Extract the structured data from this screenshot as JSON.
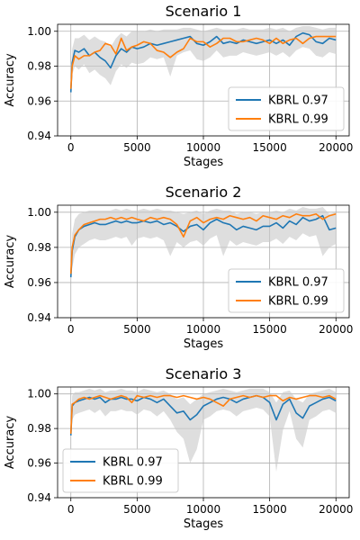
{
  "chart_data": [
    {
      "type": "line",
      "title": "Scenario 1",
      "xlabel": "Stages",
      "ylabel": "Accuracy",
      "xlim": [
        -1000,
        21000
      ],
      "ylim": [
        0.94,
        1.004
      ],
      "xticks": [
        0,
        5000,
        10000,
        15000,
        20000
      ],
      "yticks": [
        0.94,
        0.96,
        0.98,
        1.0
      ],
      "xtick_labels": [
        "0",
        "5000",
        "10000",
        "15000",
        "20000"
      ],
      "ytick_labels": [
        "0.94",
        "0.96",
        "0.98",
        "1.00"
      ],
      "grid": true,
      "legend_position": "lower-right",
      "series": [
        {
          "name": "KBRL 0.97",
          "color": "#1f77b4",
          "x": [
            0,
            100,
            300,
            600,
            1000,
            1400,
            1800,
            2200,
            2600,
            3000,
            3400,
            3800,
            4200,
            4600,
            5000,
            5500,
            6000,
            6500,
            7000,
            7500,
            8000,
            8500,
            9000,
            9500,
            10000,
            10500,
            11000,
            11500,
            12000,
            12500,
            13000,
            13500,
            14000,
            14500,
            15000,
            15500,
            16000,
            16500,
            17000,
            17500,
            18000,
            18500,
            19000,
            19500,
            20000
          ],
          "y": [
            0.965,
            0.982,
            0.989,
            0.988,
            0.99,
            0.986,
            0.988,
            0.985,
            0.983,
            0.979,
            0.986,
            0.99,
            0.988,
            0.991,
            0.99,
            0.991,
            0.993,
            0.992,
            0.993,
            0.994,
            0.995,
            0.996,
            0.997,
            0.993,
            0.992,
            0.994,
            0.997,
            0.993,
            0.994,
            0.993,
            0.995,
            0.994,
            0.993,
            0.994,
            0.995,
            0.993,
            0.995,
            0.992,
            0.997,
            0.999,
            0.998,
            0.994,
            0.993,
            0.996,
            0.995
          ],
          "band_lower": [
            0.963,
            0.975,
            0.98,
            0.978,
            0.981,
            0.976,
            0.978,
            0.975,
            0.973,
            0.969,
            0.977,
            0.981,
            0.979,
            0.982,
            0.981,
            0.982,
            0.985,
            0.984,
            0.985,
            0.974,
            0.986,
            0.988,
            0.989,
            0.984,
            0.983,
            0.985,
            0.989,
            0.985,
            0.986,
            0.986,
            0.988,
            0.987,
            0.986,
            0.987,
            0.988,
            0.986,
            0.988,
            0.985,
            0.989,
            0.991,
            0.99,
            0.986,
            0.985,
            0.988,
            0.987
          ],
          "band_upper": [
            0.968,
            0.99,
            0.996,
            0.996,
            0.998,
            0.995,
            0.997,
            0.995,
            0.994,
            0.991,
            0.996,
            0.999,
            0.997,
            1.0,
            1.0,
            1.0,
            1.001,
            1.0,
            1.001,
            1.001,
            1.001,
            1.002,
            1.002,
            1.001,
            1.0,
            1.001,
            1.002,
            1.001,
            1.001,
            1.001,
            1.002,
            1.001,
            1.001,
            1.001,
            1.002,
            1.001,
            1.002,
            1.0,
            1.002,
            1.003,
            1.003,
            1.002,
            1.001,
            1.002,
            1.002
          ]
        },
        {
          "name": "KBRL 0.99",
          "color": "#ff7f0e",
          "x": [
            0,
            100,
            300,
            600,
            1000,
            1400,
            1800,
            2200,
            2600,
            3000,
            3400,
            3800,
            4200,
            4600,
            5000,
            5500,
            6000,
            6500,
            7000,
            7500,
            8000,
            8500,
            9000,
            9500,
            10000,
            10500,
            11000,
            11500,
            12000,
            12500,
            13000,
            13500,
            14000,
            14500,
            15000,
            15500,
            16000,
            16500,
            17000,
            17500,
            18000,
            18500,
            19000,
            19500,
            20000
          ],
          "y": [
            0.967,
            0.98,
            0.986,
            0.984,
            0.986,
            0.986,
            0.988,
            0.989,
            0.993,
            0.992,
            0.987,
            0.996,
            0.989,
            0.991,
            0.992,
            0.994,
            0.993,
            0.989,
            0.988,
            0.985,
            0.988,
            0.99,
            0.996,
            0.994,
            0.994,
            0.991,
            0.993,
            0.996,
            0.996,
            0.994,
            0.994,
            0.995,
            0.996,
            0.995,
            0.993,
            0.996,
            0.993,
            0.995,
            0.996,
            0.993,
            0.996,
            0.997,
            0.997,
            0.997,
            0.997
          ]
        }
      ]
    },
    {
      "type": "line",
      "title": "Scenario 2",
      "xlabel": "Stages",
      "ylabel": "Accuracy",
      "xlim": [
        -1000,
        21000
      ],
      "ylim": [
        0.94,
        1.004
      ],
      "xticks": [
        0,
        5000,
        10000,
        15000,
        20000
      ],
      "yticks": [
        0.94,
        0.96,
        0.98,
        1.0
      ],
      "xtick_labels": [
        "0",
        "5000",
        "10000",
        "15000",
        "20000"
      ],
      "ytick_labels": [
        "0.94",
        "0.96",
        "0.98",
        "1.00"
      ],
      "grid": true,
      "legend_position": "lower-right",
      "series": [
        {
          "name": "KBRL 0.97",
          "color": "#1f77b4",
          "x": [
            0,
            100,
            300,
            600,
            1000,
            1400,
            1800,
            2200,
            2600,
            3000,
            3400,
            3800,
            4200,
            4600,
            5000,
            5500,
            6000,
            6500,
            7000,
            7500,
            8000,
            8500,
            9000,
            9500,
            10000,
            10500,
            11000,
            11500,
            12000,
            12500,
            13000,
            13500,
            14000,
            14500,
            15000,
            15500,
            16000,
            16500,
            17000,
            17500,
            18000,
            18500,
            19000,
            19500,
            20000
          ],
          "y": [
            0.963,
            0.978,
            0.986,
            0.99,
            0.992,
            0.993,
            0.994,
            0.993,
            0.993,
            0.994,
            0.995,
            0.994,
            0.995,
            0.994,
            0.994,
            0.995,
            0.994,
            0.995,
            0.993,
            0.994,
            0.992,
            0.989,
            0.992,
            0.993,
            0.99,
            0.994,
            0.996,
            0.994,
            0.993,
            0.99,
            0.992,
            0.991,
            0.99,
            0.992,
            0.992,
            0.994,
            0.991,
            0.995,
            0.993,
            0.997,
            0.995,
            0.996,
            0.998,
            0.99,
            0.991
          ],
          "band_lower": [
            0.96,
            0.968,
            0.976,
            0.98,
            0.982,
            0.984,
            0.985,
            0.984,
            0.984,
            0.985,
            0.986,
            0.985,
            0.986,
            0.981,
            0.985,
            0.986,
            0.985,
            0.986,
            0.984,
            0.975,
            0.983,
            0.98,
            0.983,
            0.984,
            0.981,
            0.985,
            0.987,
            0.975,
            0.984,
            0.981,
            0.983,
            0.982,
            0.981,
            0.983,
            0.983,
            0.985,
            0.982,
            0.986,
            0.984,
            0.988,
            0.986,
            0.987,
            0.975,
            0.98,
            0.982
          ],
          "band_upper": [
            0.966,
            0.988,
            0.996,
            0.999,
            1.0,
            1.001,
            1.001,
            1.001,
            1.001,
            1.001,
            1.002,
            1.001,
            1.002,
            1.001,
            1.001,
            1.002,
            1.001,
            1.002,
            1.001,
            1.001,
            1.0,
            0.999,
            1.0,
            1.001,
            0.999,
            1.001,
            1.002,
            1.001,
            1.001,
            0.999,
            1.0,
            1.0,
            0.999,
            1.0,
            1.0,
            1.001,
            1.0,
            1.002,
            1.001,
            1.003,
            1.002,
            1.002,
            1.003,
            0.999,
            1.0
          ]
        },
        {
          "name": "KBRL 0.99",
          "color": "#ff7f0e",
          "x": [
            0,
            100,
            300,
            600,
            1000,
            1400,
            1800,
            2200,
            2600,
            3000,
            3400,
            3800,
            4200,
            4600,
            5000,
            5500,
            6000,
            6500,
            7000,
            7500,
            8000,
            8500,
            9000,
            9500,
            10000,
            10500,
            11000,
            11500,
            12000,
            12500,
            13000,
            13500,
            14000,
            14500,
            15000,
            15500,
            16000,
            16500,
            17000,
            17500,
            18000,
            18500,
            19000,
            19500,
            20000
          ],
          "y": [
            0.965,
            0.98,
            0.987,
            0.99,
            0.993,
            0.994,
            0.995,
            0.996,
            0.996,
            0.997,
            0.996,
            0.997,
            0.996,
            0.997,
            0.996,
            0.995,
            0.997,
            0.996,
            0.997,
            0.996,
            0.993,
            0.986,
            0.995,
            0.997,
            0.994,
            0.996,
            0.997,
            0.996,
            0.998,
            0.997,
            0.996,
            0.997,
            0.995,
            0.998,
            0.997,
            0.996,
            0.998,
            0.997,
            0.999,
            0.998,
            0.998,
            0.999,
            0.996,
            0.998,
            0.999
          ]
        }
      ]
    },
    {
      "type": "line",
      "title": "Scenario 3",
      "xlabel": "Stages",
      "ylabel": "Accuracy",
      "xlim": [
        -1000,
        21000
      ],
      "ylim": [
        0.94,
        1.004
      ],
      "xticks": [
        0,
        5000,
        10000,
        15000,
        20000
      ],
      "yticks": [
        0.94,
        0.96,
        0.98,
        1.0
      ],
      "xtick_labels": [
        "0",
        "5000",
        "10000",
        "15000",
        "20000"
      ],
      "ytick_labels": [
        "0.94",
        "0.96",
        "0.98",
        "1.00"
      ],
      "grid": true,
      "legend_position": "lower-left",
      "series": [
        {
          "name": "KBRL 0.97",
          "color": "#1f77b4",
          "x": [
            0,
            100,
            300,
            600,
            1000,
            1400,
            1800,
            2200,
            2600,
            3000,
            3400,
            3800,
            4200,
            4600,
            5000,
            5500,
            6000,
            6500,
            7000,
            7500,
            8000,
            8500,
            9000,
            9500,
            10000,
            10500,
            11000,
            11500,
            12000,
            12500,
            13000,
            13500,
            14000,
            14500,
            15000,
            15500,
            16000,
            16500,
            17000,
            17500,
            18000,
            18500,
            19000,
            19500,
            20000
          ],
          "y": [
            0.976,
            0.993,
            0.995,
            0.996,
            0.997,
            0.998,
            0.997,
            0.998,
            0.995,
            0.997,
            0.997,
            0.998,
            0.997,
            0.997,
            0.996,
            0.998,
            0.997,
            0.995,
            0.997,
            0.993,
            0.989,
            0.99,
            0.985,
            0.988,
            0.993,
            0.995,
            0.997,
            0.998,
            0.997,
            0.995,
            0.997,
            0.998,
            0.999,
            0.998,
            0.995,
            0.985,
            0.994,
            0.997,
            0.989,
            0.986,
            0.993,
            0.995,
            0.997,
            0.998,
            0.996
          ],
          "band_lower": [
            0.974,
            0.985,
            0.988,
            0.989,
            0.99,
            0.991,
            0.989,
            0.991,
            0.987,
            0.99,
            0.99,
            0.991,
            0.99,
            0.99,
            0.988,
            0.991,
            0.99,
            0.987,
            0.99,
            0.985,
            0.978,
            0.974,
            0.96,
            0.968,
            0.985,
            0.987,
            0.99,
            0.991,
            0.99,
            0.987,
            0.99,
            0.991,
            0.992,
            0.991,
            0.987,
            0.955,
            0.979,
            0.99,
            0.974,
            0.969,
            0.985,
            0.987,
            0.99,
            0.991,
            0.989
          ],
          "band_upper": [
            0.978,
            0.999,
            1.001,
            1.001,
            1.002,
            1.003,
            1.002,
            1.003,
            1.001,
            1.002,
            1.002,
            1.003,
            1.002,
            1.002,
            1.001,
            1.003,
            1.002,
            1.001,
            1.002,
            1.0,
            0.997,
            0.998,
            0.994,
            0.997,
            1.0,
            1.001,
            1.002,
            1.003,
            1.002,
            1.001,
            1.002,
            1.003,
            1.003,
            1.003,
            1.001,
            0.995,
            1.001,
            1.002,
            0.997,
            0.995,
            1.0,
            1.001,
            1.002,
            1.003,
            1.001
          ]
        },
        {
          "name": "KBRL 0.99",
          "color": "#ff7f0e",
          "x": [
            0,
            100,
            300,
            600,
            1000,
            1400,
            1800,
            2200,
            2600,
            3000,
            3400,
            3800,
            4200,
            4600,
            5000,
            5500,
            6000,
            6500,
            7000,
            7500,
            8000,
            8500,
            9000,
            9500,
            10000,
            10500,
            11000,
            11500,
            12000,
            12500,
            13000,
            13500,
            14000,
            14500,
            15000,
            15500,
            16000,
            16500,
            17000,
            17500,
            18000,
            18500,
            19000,
            19500,
            20000
          ],
          "y": [
            0.977,
            0.994,
            0.995,
            0.997,
            0.998,
            0.997,
            0.998,
            0.999,
            0.998,
            0.997,
            0.998,
            0.999,
            0.998,
            0.995,
            0.999,
            0.998,
            0.999,
            0.998,
            0.999,
            0.999,
            0.998,
            0.999,
            0.998,
            0.997,
            0.998,
            0.997,
            0.995,
            0.993,
            0.997,
            0.998,
            0.999,
            0.998,
            0.999,
            0.998,
            0.999,
            0.999,
            0.996,
            0.998,
            0.997,
            0.998,
            0.999,
            0.999,
            0.998,
            0.999,
            0.997
          ]
        }
      ]
    }
  ]
}
